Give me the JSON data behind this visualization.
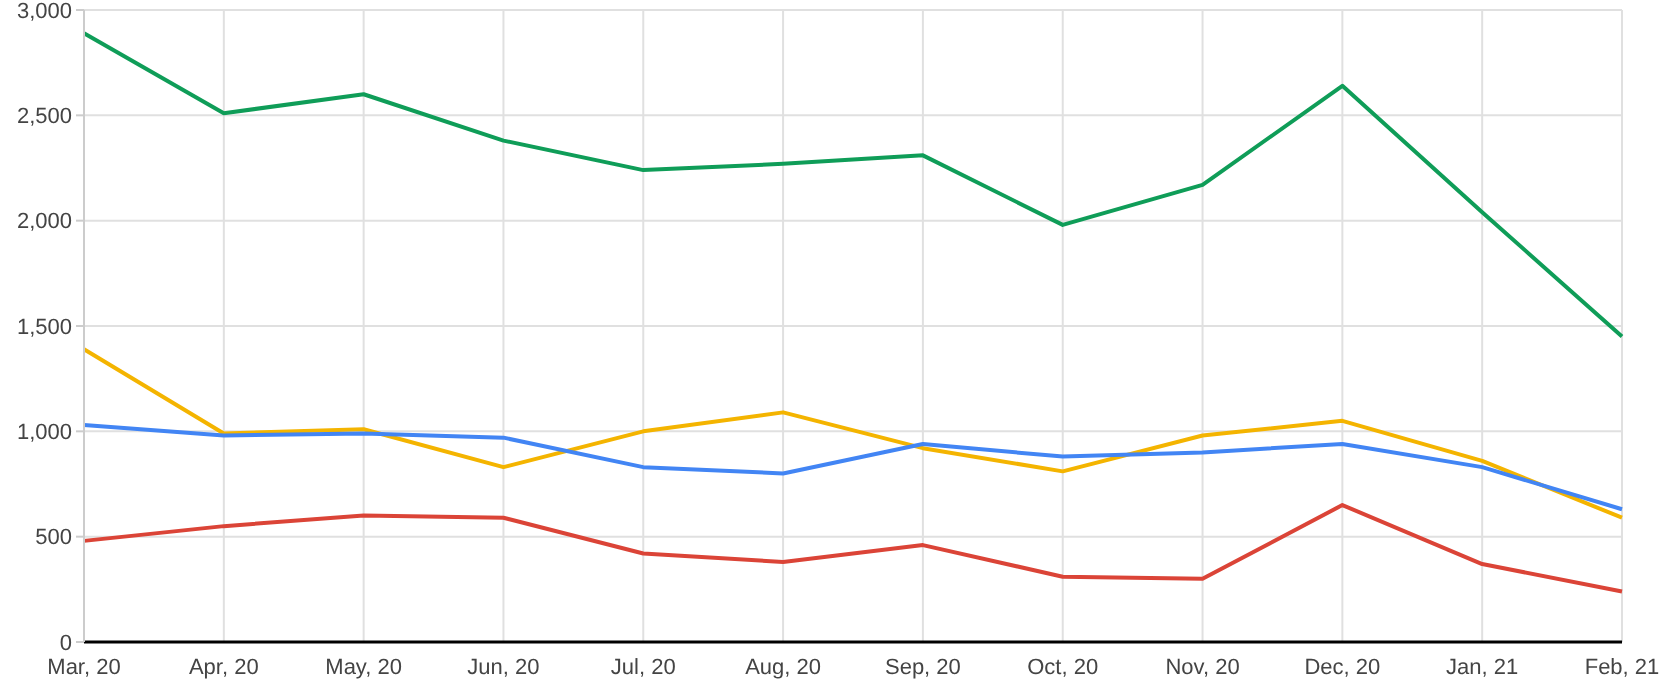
{
  "chart_data": {
    "type": "line",
    "categories": [
      "Mar, 20",
      "Apr, 20",
      "May, 20",
      "Jun, 20",
      "Jul, 20",
      "Aug, 20",
      "Sep, 20",
      "Oct, 20",
      "Nov, 20",
      "Dec, 20",
      "Jan, 21",
      "Feb, 21"
    ],
    "series": [
      {
        "color": "#0f9d58",
        "values": [
          2890,
          2510,
          2600,
          2380,
          2240,
          2270,
          2310,
          1980,
          2170,
          2640,
          2040,
          1450
        ]
      },
      {
        "color": "#f4b400",
        "values": [
          1390,
          990,
          1010,
          830,
          1000,
          1090,
          920,
          810,
          980,
          1050,
          860,
          590
        ]
      },
      {
        "color": "#4285f4",
        "values": [
          1030,
          980,
          990,
          970,
          830,
          800,
          940,
          880,
          900,
          940,
          830,
          630
        ]
      },
      {
        "color": "#db4437",
        "values": [
          480,
          550,
          600,
          590,
          420,
          380,
          460,
          310,
          300,
          650,
          370,
          240
        ]
      }
    ],
    "ylim": [
      0,
      3000
    ],
    "yticks": [
      0,
      500,
      {
        "value": 1000,
        "label": "1,000"
      },
      {
        "value": 1500,
        "label": "1,500"
      },
      {
        "value": 2000,
        "label": "2,000"
      },
      {
        "value": 2500,
        "label": "2,500"
      },
      {
        "value": 3000,
        "label": "3,000"
      }
    ],
    "grid": true,
    "legend": false,
    "marker": "none",
    "line_style": "solid"
  }
}
